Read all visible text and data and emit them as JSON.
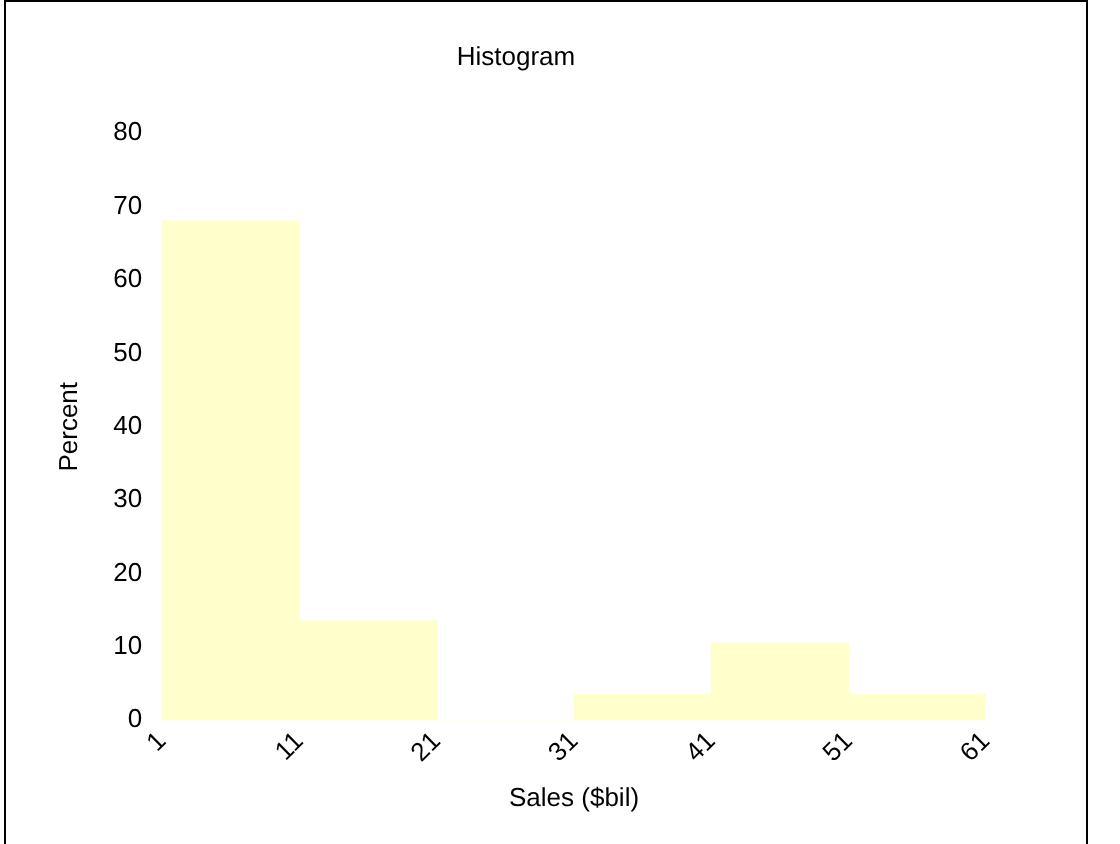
{
  "chart_data": {
    "type": "histogram",
    "title": "Histogram",
    "xlabel": "Sales ($bil)",
    "ylabel": "Percent",
    "bins": [
      1,
      11,
      21,
      31,
      41,
      51,
      61
    ],
    "values": [
      68,
      13.5,
      0,
      3.5,
      10.5,
      3.5
    ],
    "color": "#ffffcc",
    "ylim": [
      0,
      80
    ],
    "yticks": [
      0,
      10,
      20,
      30,
      40,
      50,
      60,
      70,
      80
    ],
    "xlim": [
      1,
      61
    ],
    "xticks": [
      1,
      11,
      21,
      31,
      41,
      51,
      61
    ],
    "grid": false,
    "legend": false
  }
}
